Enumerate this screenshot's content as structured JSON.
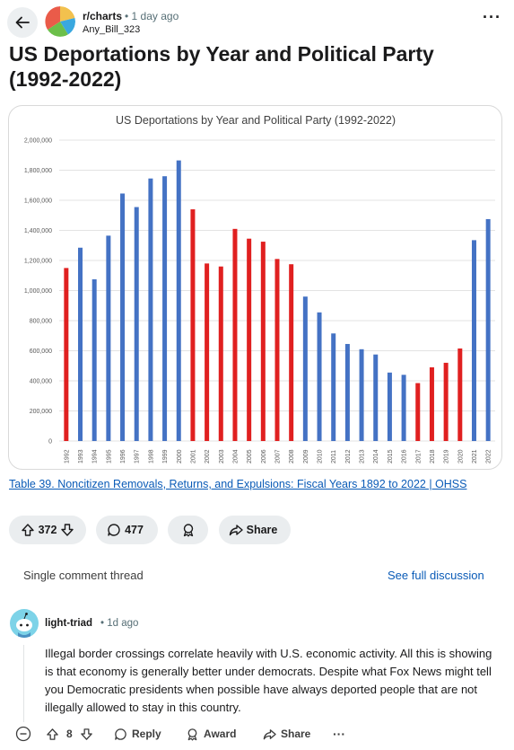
{
  "post": {
    "subreddit": "r/charts",
    "age": "• 1 day ago",
    "author": "Any_Bill_323",
    "title": "US Deportations by Year and Political Party (1992-2022)",
    "source_link": "Table 39. Noncitizen Removals, Returns, and Expulsions: Fiscal Years 1892 to 2022 | OHSS"
  },
  "actions": {
    "votes": "372",
    "comments": "477",
    "share_label": "Share"
  },
  "thread": {
    "label": "Single comment thread",
    "see_full": "See full discussion"
  },
  "comment": {
    "user": "light-triad",
    "time": "• 1d ago",
    "body": "Illegal border crossings correlate heavily with U.S. economic activity. All this is showing is that economy is generally better under democrats. Despite what Fox News might tell you Democratic presidents when possible have always deported people that are not illegally allowed to stay in this country.",
    "votes": "8",
    "reply_label": "Reply",
    "award_label": "Award",
    "share_label": "Share",
    "more_label": "···"
  },
  "colors": {
    "democrat": "#4472c4",
    "republican": "#e02020",
    "link": "#0a5bb7"
  },
  "chart_data": {
    "type": "bar",
    "title": "US Deportations by Year and Political Party (1992-2022)",
    "categories": [
      "1992",
      "1993",
      "1994",
      "1995",
      "1996",
      "1997",
      "1998",
      "1999",
      "2000",
      "2001",
      "2002",
      "2003",
      "2004",
      "2005",
      "2006",
      "2007",
      "2008",
      "2009",
      "2010",
      "2011",
      "2012",
      "2013",
      "2014",
      "2015",
      "2016",
      "2017",
      "2018",
      "2019",
      "2020",
      "2021",
      "2022"
    ],
    "values": [
      1150000,
      1285000,
      1075000,
      1365000,
      1645000,
      1555000,
      1745000,
      1760000,
      1865000,
      1540000,
      1180000,
      1160000,
      1410000,
      1345000,
      1325000,
      1210000,
      1175000,
      960000,
      855000,
      715000,
      645000,
      610000,
      575000,
      455000,
      440000,
      385000,
      490000,
      520000,
      615000,
      1335000,
      1475000
    ],
    "party": [
      "R",
      "D",
      "D",
      "D",
      "D",
      "D",
      "D",
      "D",
      "D",
      "R",
      "R",
      "R",
      "R",
      "R",
      "R",
      "R",
      "R",
      "D",
      "D",
      "D",
      "D",
      "D",
      "D",
      "D",
      "D",
      "R",
      "R",
      "R",
      "R",
      "D",
      "D"
    ],
    "ylim": [
      0,
      2000000
    ],
    "yticks": [
      "0",
      "200,000",
      "400,000",
      "600,000",
      "800,000",
      "1,000,000",
      "1,200,000",
      "1,400,000",
      "1,600,000",
      "1,800,000",
      "2,000,000"
    ],
    "grid": true
  }
}
